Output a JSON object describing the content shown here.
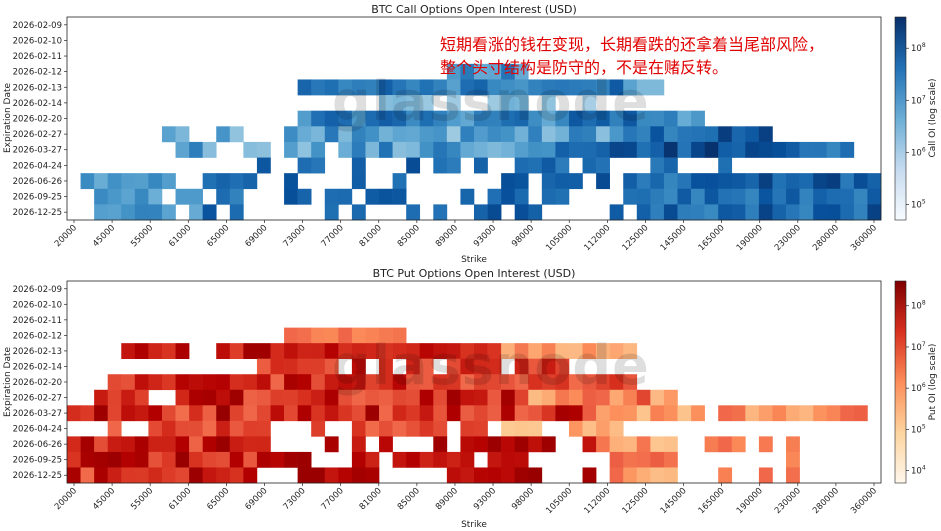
{
  "annotation": [
    "短期看涨的钱在变现，长期看跌的还拿着当尾部风险，",
    "整个头寸结构是防守的，不是在赌反转。"
  ],
  "watermark": "glassnode",
  "chart_data": [
    {
      "type": "heatmap",
      "title": "BTC Call Options Open Interest (USD)",
      "xlabel": "Strike",
      "ylabel": "Expiration Date",
      "colorbar_label": "Call OI (log scale)",
      "colorscale": "Blues",
      "scale": "log",
      "colorbar_ticks": [
        {
          "value": 100000,
          "label": "10^5"
        },
        {
          "value": 1000000,
          "label": "10^6"
        },
        {
          "value": 10000000,
          "label": "10^7"
        },
        {
          "value": 100000000,
          "label": "10^8"
        }
      ],
      "x_tick_labels": [
        "20000",
        "45000",
        "55000",
        "61000",
        "65000",
        "69000",
        "73000",
        "77000",
        "81000",
        "85000",
        "89000",
        "93000",
        "98000",
        "105000",
        "112000",
        "125000",
        "145000",
        "165000",
        "190000",
        "230000",
        "280000",
        "360000"
      ],
      "y_categories": [
        "2026-02-09",
        "2026-02-10",
        "2026-02-11",
        "2026-02-12",
        "2026-02-13",
        "2026-02-14",
        "2026-02-20",
        "2026-02-27",
        "2026-03-27",
        "2026-04-24",
        "2026-06-26",
        "2026-09-25",
        "2026-12-25"
      ]
    },
    {
      "type": "heatmap",
      "title": "BTC Put Options Open Interest (USD)",
      "xlabel": "Strike",
      "ylabel": "Expiration Date",
      "colorbar_label": "Put OI (log scale)",
      "colorscale": "OrRd",
      "scale": "log",
      "colorbar_ticks": [
        {
          "value": 10000,
          "label": "10^4"
        },
        {
          "value": 100000,
          "label": "10^5"
        },
        {
          "value": 1000000,
          "label": "10^6"
        },
        {
          "value": 10000000,
          "label": "10^7"
        },
        {
          "value": 100000000,
          "label": "10^8"
        }
      ],
      "x_tick_labels": [
        "20000",
        "45000",
        "55000",
        "61000",
        "65000",
        "69000",
        "73000",
        "77000",
        "81000",
        "85000",
        "89000",
        "93000",
        "98000",
        "105000",
        "112000",
        "125000",
        "145000",
        "165000",
        "190000",
        "230000",
        "280000",
        "360000"
      ],
      "y_categories": [
        "2026-02-09",
        "2026-02-10",
        "2026-02-11",
        "2026-02-12",
        "2026-02-13",
        "2026-02-14",
        "2026-02-20",
        "2026-02-27",
        "2026-03-27",
        "2026-04-24",
        "2026-06-26",
        "2026-09-25",
        "2026-12-25"
      ]
    }
  ]
}
